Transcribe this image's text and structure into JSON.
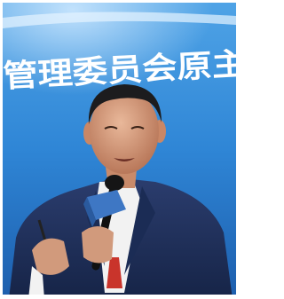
{
  "image": {
    "banner_text": "管理委员会原主"
  }
}
